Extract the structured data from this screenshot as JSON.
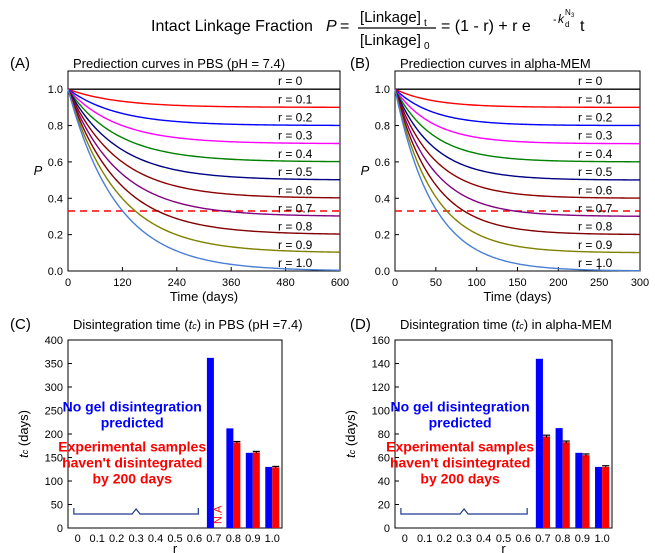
{
  "header": {
    "lead": "Intact Linkage Fraction",
    "var": "P",
    "eq": "=",
    "num": "[Linkage]",
    "num_sub": "t",
    "den": "[Linkage]",
    "den_sub": "0",
    "rhs": "= (1 - r) + r e",
    "exp_minus": "-",
    "exp_k": "k",
    "exp_sub": "d",
    "exp_sup": "N",
    "exp_sup_sub": "3",
    "tail": "t"
  },
  "chart_data": [
    {
      "id": "A",
      "type": "line",
      "letter": "(A)",
      "title": "Prediection curves in PBS (pH = 7.4)",
      "xlabel": "Time (days)",
      "ylabel": "P",
      "xlim": [
        0,
        600
      ],
      "ylim": [
        0,
        1.1
      ],
      "x_ticks": [
        0,
        120,
        240,
        360,
        480,
        600
      ],
      "y_ticks": [
        0.0,
        0.2,
        0.4,
        0.6,
        0.8,
        1.0
      ],
      "y_tick_labels": [
        "0.0",
        "0.2",
        "0.4",
        "0.6",
        "0.8",
        "1.0"
      ],
      "model": "P(t) = (1 - r) + r exp(-k t)",
      "rate_constant_per_day": 0.0092,
      "threshold_value": 0.33,
      "r_values": [
        0,
        0.1,
        0.2,
        0.3,
        0.4,
        0.5,
        0.6,
        0.7,
        0.8,
        0.9,
        1.0
      ],
      "curve_labels": [
        "r = 0",
        "r = 0.1",
        "r = 0.2",
        "r = 0.3",
        "r = 0.4",
        "r = 0.5",
        "r = 0.6",
        "r = 0.7",
        "r = 0.8",
        "r = 0.9",
        "r = 1.0"
      ],
      "colors": [
        "#000000",
        "#ff0000",
        "#0000ff",
        "#ff00ff",
        "#008000",
        "#000080",
        "#8b0000",
        "#800080",
        "#800000",
        "#808000",
        "#4a7fd4"
      ]
    },
    {
      "id": "B",
      "type": "line",
      "letter": "(B)",
      "title": "Prediection curves in alpha-MEM",
      "xlabel": "Time (days)",
      "ylabel": "P",
      "xlim": [
        0,
        300
      ],
      "ylim": [
        0,
        1.1
      ],
      "x_ticks": [
        0,
        50,
        100,
        150,
        200,
        250,
        300
      ],
      "y_ticks": [
        0.0,
        0.2,
        0.4,
        0.6,
        0.8,
        1.0
      ],
      "y_tick_labels": [
        "0.0",
        "0.2",
        "0.4",
        "0.6",
        "0.8",
        "1.0"
      ],
      "model": "P(t) = (1 - r) + r exp(-k t)",
      "rate_constant_per_day": 0.0215,
      "threshold_value": 0.33,
      "r_values": [
        0,
        0.1,
        0.2,
        0.3,
        0.4,
        0.5,
        0.6,
        0.7,
        0.8,
        0.9,
        1.0
      ],
      "curve_labels": [
        "r = 0",
        "r = 0.1",
        "r = 0.2",
        "r = 0.3",
        "r = 0.4",
        "r = 0.5",
        "r = 0.6",
        "r = 0.7",
        "r = 0.8",
        "r = 0.9",
        "r = 1.0"
      ],
      "colors": [
        "#000000",
        "#ff0000",
        "#0000ff",
        "#ff00ff",
        "#008000",
        "#000080",
        "#8b0000",
        "#800080",
        "#800000",
        "#808000",
        "#4a7fd4"
      ]
    },
    {
      "id": "C",
      "type": "bar",
      "letter": "(C)",
      "title_pre": "Disintegration time (",
      "title_sym": "t",
      "title_sub": "c",
      "title_post": ") in PBS (pH =7.4)",
      "xlabel": "r",
      "ylabel": "t",
      "ylabel_sub": "c",
      "ylabel_post": " (days)",
      "ylim": [
        0,
        400
      ],
      "y_ticks": [
        0,
        50,
        100,
        150,
        200,
        250,
        300,
        350,
        400
      ],
      "categories": [
        "0",
        "0.1",
        "0.2",
        "0.3",
        "0.4",
        "0.5",
        "0.6",
        "0.7",
        "0.8",
        "0.9",
        "1.0"
      ],
      "series": [
        {
          "color": "#0000ff",
          "values": [
            null,
            null,
            null,
            null,
            null,
            null,
            null,
            362,
            212,
            160,
            130
          ]
        },
        {
          "color": "#ff0000",
          "values": [
            null,
            null,
            null,
            null,
            null,
            null,
            null,
            null,
            182,
            161,
            129
          ]
        }
      ],
      "error_bars": [
        null,
        null,
        null,
        null,
        null,
        null,
        null,
        null,
        2,
        2,
        2
      ],
      "na_label": "N.A",
      "annotation_blue": [
        "No gel disintegration",
        "predicted"
      ],
      "annotation_red": [
        "Experimental samples",
        "haven't disintegrated",
        "by 200 days"
      ]
    },
    {
      "id": "D",
      "type": "bar",
      "letter": "(D)",
      "title_pre": "Disintegration time (",
      "title_sym": "t",
      "title_sub": "c",
      "title_post": ") in alpha-MEM",
      "xlabel": "r",
      "ylabel": "t",
      "ylabel_sub": "c",
      "ylabel_post": " (days)",
      "ylim": [
        0,
        160
      ],
      "y_ticks": [
        0,
        20,
        40,
        60,
        80,
        100,
        120,
        140,
        160
      ],
      "categories": [
        "0",
        "0.1",
        "0.2",
        "0.3",
        "0.4",
        "0.5",
        "0.6",
        "0.7",
        "0.8",
        "0.9",
        "1.0"
      ],
      "series": [
        {
          "color": "#0000ff",
          "values": [
            null,
            null,
            null,
            null,
            null,
            null,
            null,
            144,
            85,
            64,
            52
          ]
        },
        {
          "color": "#ff0000",
          "values": [
            null,
            null,
            null,
            null,
            null,
            null,
            null,
            78,
            73,
            62,
            52
          ]
        }
      ],
      "error_bars": [
        null,
        null,
        null,
        null,
        null,
        null,
        null,
        1,
        1,
        1,
        1
      ],
      "annotation_blue": [
        "No gel disintegration",
        "predicted"
      ],
      "annotation_red": [
        "Experimental samples",
        "haven't disintegrated",
        "by 200 days"
      ]
    }
  ]
}
